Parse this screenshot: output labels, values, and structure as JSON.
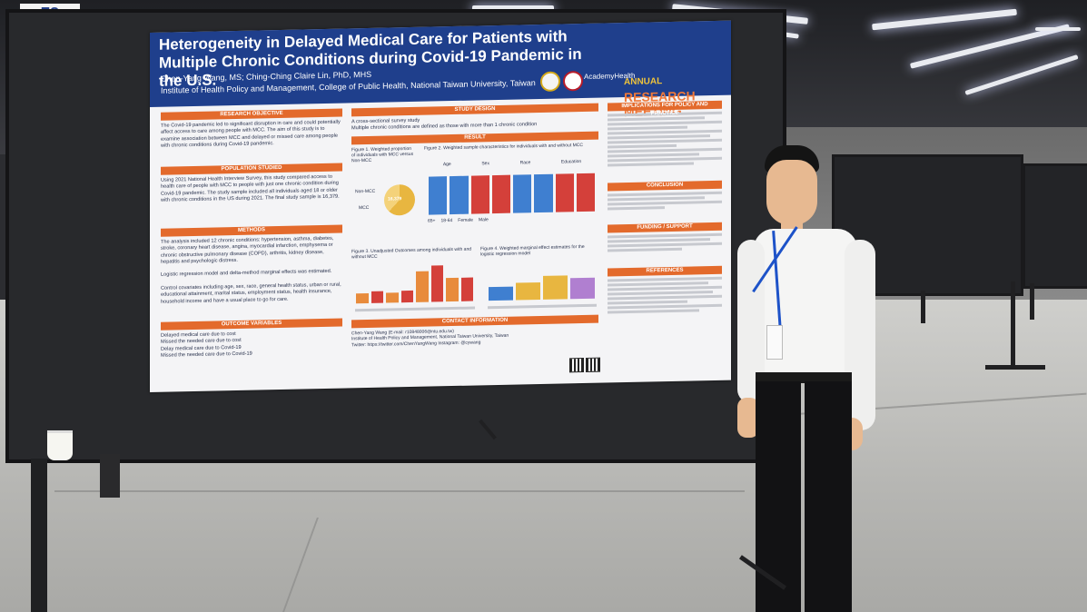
{
  "booth": {
    "number": "78"
  },
  "poster": {
    "title": "Heterogeneity in Delayed Medical Care for Patients with Multiple Chronic Conditions during Covid-19 Pandemic in the U.S.",
    "authors": "Chen-Yang Wang, MS; Ching-Ching Claire Lin, PhD, MHS",
    "affiliation": "Institute of Health Policy and Management, College of Public Health, National Taiwan University, Taiwan",
    "logo_text": "AcademyHealth",
    "meeting_line1": "ANNUAL",
    "meeting_line2": "RESEARCH MEETING",
    "left_column": {
      "research_objective": {
        "heading": "RESEARCH OBJECTIVE",
        "text": "The Covid-19 pandemic led to significant disruption in care and could potentially affect access to care among people with MCC. The aim of this study is to examine association between MCC and delayed or missed care among people with chronic conditions during Covid-19 pandemic."
      },
      "population_studied": {
        "heading": "POPULATION STUDIED",
        "text": "Using 2021 National Health Interview Survey, this study compared access to health care of people with MCC to people with just one chronic condition during Covid-19 pandemic. The study sample included all individuals aged 18 or older with chronic conditions in the US during 2021. The final study sample is 16,379."
      },
      "methods": {
        "heading": "METHODS",
        "bullets": [
          "The analysis included 12 chronic conditions: hypertension, asthma, diabetes, stroke, coronary heart disease, angina, myocardial infarction, emphysema or chronic obstructive pulmonary disease (COPD), arthritis, kidney disease, hepatitis and psychologic distress.",
          "Logistic regression model and delta-method marginal effects was estimated.",
          "Control covariates including age, sex, race, general health status, urban or rural, educational attainment, marital status, employment status, health insurance, household income and have a usual place to go for care."
        ]
      },
      "outcome_variables": {
        "heading": "OUTCOME VARIABLES",
        "bullets": [
          "Delayed medical care due to cost",
          "Missed the needed care due to cost",
          "Delay medical care due to Covid-19",
          "Missed the needed care due to Covid-19"
        ]
      }
    },
    "middle_column": {
      "study_design": {
        "heading": "STUDY DESIGN",
        "bullets": [
          "A cross-sectional survey study",
          "Multiple chronic conditions are defined as those with more than 1 chronic condition"
        ]
      },
      "results": {
        "heading": "RESULT",
        "figure1_caption": "Figure 1. Weighted proportion of individuals with MCC versus Non-MCC",
        "figure2_caption": "Figure 2. Weighted sample characteristics for individuals with and without MCC",
        "figure3_caption": "Figure 3. Unadjusted Outcomes among individuals with and without MCC",
        "figure4_caption": "Figure 4. Weighted marginal effect estimates for the logistic regression model",
        "label_non_mcc": "Non-MCC",
        "label_mcc": "MCC",
        "pie_center": "16,379",
        "figure2_groups": [
          "Age",
          "Sex",
          "Race",
          "Education"
        ],
        "figure2_legend": [
          "65+",
          "18-64",
          "Female",
          "Male"
        ]
      },
      "contact": {
        "heading": "CONTACT INFORMATION",
        "name": "Chen-Yang Wang (E-mail: r10848006@ntu.edu.tw)",
        "institute": "Institute of Health Policy and Management, National Taiwan University, Taiwan",
        "social": "Twitter: https://twitter.com/ChenYangWang   Instagram: @cywang"
      }
    },
    "right_column": {
      "implications_heading": "IMPLICATIONS FOR POLICY AND PRACTICE",
      "conclusion_heading": "CONCLUSION",
      "funding_heading": "FUNDING / SUPPORT",
      "references_heading": "REFERENCES"
    }
  },
  "colors": {
    "poster_header": "#1f3f8c",
    "section_heading": "#e36a2c",
    "chart_blue": "#3f7fd0",
    "chart_red": "#d4403a",
    "chart_orange": "#e88b3c",
    "chart_gold": "#e8b640"
  }
}
